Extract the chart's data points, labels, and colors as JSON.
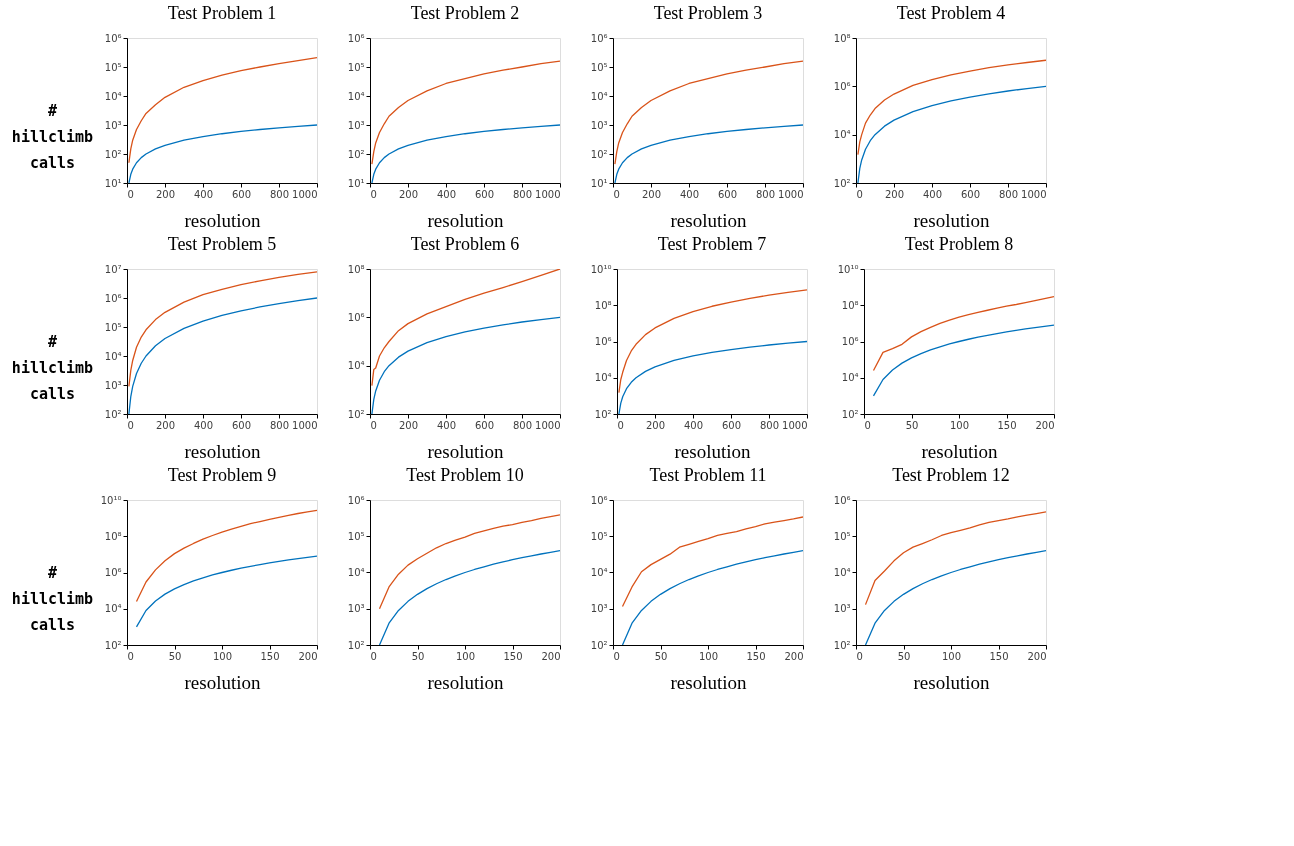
{
  "chart_data": [
    {
      "type": "line",
      "title": "Test Problem 1",
      "xlabel": "resolution",
      "ylabel": "# hillclimb calls",
      "log": true,
      "grid": false,
      "xlim": [
        0,
        1000
      ],
      "xticks": [
        0,
        200,
        400,
        600,
        800,
        1000
      ],
      "ylim": [
        10,
        1000000
      ],
      "yticks": [
        {
          "value": 10,
          "label": "10¹"
        },
        {
          "value": 100,
          "label": "10²"
        },
        {
          "value": 1000,
          "label": "10³"
        },
        {
          "value": 10000,
          "label": "10⁴"
        },
        {
          "value": 100000,
          "label": "10⁵"
        },
        {
          "value": 1000000,
          "label": "10⁶"
        }
      ],
      "x": [
        10,
        20,
        30,
        50,
        75,
        100,
        150,
        200,
        300,
        400,
        500,
        600,
        700,
        800,
        900,
        1000
      ],
      "series": [
        {
          "color": "#d95319",
          "values": [
            50,
            150,
            300,
            700,
            1400,
            2500,
            5000,
            9000,
            20000,
            34000,
            52000,
            75000,
            100000,
            130000,
            165000,
            210000
          ]
        },
        {
          "color": "#0072bd",
          "values": [
            10,
            20,
            30,
            50,
            75,
            100,
            150,
            200,
            300,
            400,
            500,
            600,
            700,
            800,
            900,
            1000
          ]
        }
      ]
    },
    {
      "type": "line",
      "title": "Test Problem 2",
      "xlabel": "resolution",
      "log": true,
      "grid": false,
      "xlim": [
        0,
        1000
      ],
      "xticks": [
        0,
        200,
        400,
        600,
        800,
        1000
      ],
      "ylim": [
        10,
        1000000
      ],
      "yticks": [
        {
          "value": 10,
          "label": "10¹"
        },
        {
          "value": 100,
          "label": "10²"
        },
        {
          "value": 1000,
          "label": "10³"
        },
        {
          "value": 10000,
          "label": "10⁴"
        },
        {
          "value": 100000,
          "label": "10⁵"
        },
        {
          "value": 1000000,
          "label": "10⁶"
        }
      ],
      "x": [
        10,
        20,
        30,
        50,
        75,
        100,
        150,
        200,
        300,
        400,
        500,
        600,
        700,
        800,
        900,
        1000
      ],
      "series": [
        {
          "color": "#d95319",
          "values": [
            45,
            120,
            240,
            550,
            1100,
            2000,
            4000,
            7000,
            15000,
            27000,
            40000,
            58000,
            78000,
            100000,
            130000,
            160000
          ]
        },
        {
          "color": "#0072bd",
          "values": [
            10,
            20,
            30,
            50,
            75,
            100,
            150,
            200,
            300,
            400,
            500,
            600,
            700,
            800,
            900,
            1000
          ]
        }
      ]
    },
    {
      "type": "line",
      "title": "Test Problem 3",
      "xlabel": "resolution",
      "log": true,
      "grid": false,
      "xlim": [
        0,
        1000
      ],
      "xticks": [
        0,
        200,
        400,
        600,
        800,
        1000
      ],
      "ylim": [
        10,
        1000000
      ],
      "yticks": [
        {
          "value": 10,
          "label": "10¹"
        },
        {
          "value": 100,
          "label": "10²"
        },
        {
          "value": 1000,
          "label": "10³"
        },
        {
          "value": 10000,
          "label": "10⁴"
        },
        {
          "value": 100000,
          "label": "10⁵"
        },
        {
          "value": 1000000,
          "label": "10⁶"
        }
      ],
      "x": [
        10,
        20,
        30,
        50,
        75,
        100,
        150,
        200,
        300,
        400,
        500,
        600,
        700,
        800,
        900,
        1000
      ],
      "series": [
        {
          "color": "#d95319",
          "values": [
            45,
            120,
            240,
            550,
            1100,
            2000,
            4000,
            7000,
            15000,
            27000,
            40000,
            58000,
            78000,
            100000,
            130000,
            160000
          ]
        },
        {
          "color": "#0072bd",
          "values": [
            10,
            20,
            30,
            50,
            75,
            100,
            150,
            200,
            300,
            400,
            500,
            600,
            700,
            800,
            900,
            1000
          ]
        }
      ]
    },
    {
      "type": "line",
      "title": "Test Problem 4",
      "xlabel": "resolution",
      "log": true,
      "grid": false,
      "xlim": [
        0,
        1000
      ],
      "xticks": [
        0,
        200,
        400,
        600,
        800,
        1000
      ],
      "ylim": [
        100,
        100000000
      ],
      "yticks": [
        {
          "value": 100,
          "label": "10²"
        },
        {
          "value": 10000,
          "label": "10⁴"
        },
        {
          "value": 1000000,
          "label": "10⁶"
        },
        {
          "value": 100000000,
          "label": "10⁸"
        }
      ],
      "x": [
        10,
        20,
        30,
        50,
        75,
        100,
        150,
        200,
        300,
        400,
        500,
        600,
        700,
        800,
        900,
        1000
      ],
      "series": [
        {
          "color": "#d95319",
          "values": [
            1500,
            5000,
            10000,
            30000,
            65000,
            120000,
            270000,
            480000,
            1100000,
            1900000,
            3000000,
            4300000,
            5900000,
            7700000,
            9700000,
            12000000
          ]
        },
        {
          "color": "#0072bd",
          "values": [
            100,
            400,
            900,
            2500,
            5625,
            10000,
            22500,
            40000,
            90000,
            160000,
            250000,
            360000,
            490000,
            640000,
            810000,
            1000000
          ]
        }
      ]
    },
    {
      "type": "line",
      "title": "Test Problem 5",
      "xlabel": "resolution",
      "ylabel": "# hillclimb calls",
      "log": true,
      "grid": false,
      "xlim": [
        0,
        1000
      ],
      "xticks": [
        0,
        200,
        400,
        600,
        800,
        1000
      ],
      "ylim": [
        100,
        10000000
      ],
      "yticks": [
        {
          "value": 100,
          "label": "10²"
        },
        {
          "value": 1000,
          "label": "10³"
        },
        {
          "value": 10000,
          "label": "10⁴"
        },
        {
          "value": 100000,
          "label": "10⁵"
        },
        {
          "value": 1000000,
          "label": "10⁶"
        },
        {
          "value": 10000000,
          "label": "10⁷"
        }
      ],
      "x": [
        10,
        20,
        30,
        50,
        75,
        100,
        150,
        200,
        300,
        400,
        500,
        600,
        700,
        800,
        900,
        1000
      ],
      "series": [
        {
          "color": "#d95319",
          "values": [
            900,
            3200,
            7000,
            20000,
            45000,
            80000,
            180000,
            320000,
            720000,
            1300000,
            2000000,
            2900000,
            3900000,
            5100000,
            6500000,
            8000000
          ]
        },
        {
          "color": "#0072bd",
          "values": [
            100,
            400,
            900,
            2500,
            5625,
            10000,
            22500,
            40000,
            90000,
            160000,
            250000,
            360000,
            490000,
            640000,
            810000,
            1000000
          ]
        }
      ]
    },
    {
      "type": "line",
      "title": "Test Problem 6",
      "xlabel": "resolution",
      "log": true,
      "grid": false,
      "xlim": [
        0,
        1000
      ],
      "xticks": [
        0,
        200,
        400,
        600,
        800,
        1000
      ],
      "ylim": [
        100,
        100000000
      ],
      "yticks": [
        {
          "value": 100,
          "label": "10²"
        },
        {
          "value": 10000,
          "label": "10⁴"
        },
        {
          "value": 1000000,
          "label": "10⁶"
        },
        {
          "value": 100000000,
          "label": "10⁸"
        }
      ],
      "x": [
        10,
        20,
        30,
        50,
        75,
        100,
        150,
        200,
        300,
        400,
        500,
        600,
        700,
        800,
        900,
        1000
      ],
      "series": [
        {
          "color": "#d95319",
          "values": [
            1500,
            7000,
            8000,
            25000,
            55000,
            100000,
            280000,
            550000,
            1400000,
            2800000,
            5500000,
            10000000,
            17000000,
            30000000,
            55000000,
            100000000
          ]
        },
        {
          "color": "#0072bd",
          "values": [
            100,
            400,
            900,
            2500,
            5625,
            10000,
            22500,
            40000,
            90000,
            160000,
            250000,
            360000,
            490000,
            640000,
            810000,
            1000000
          ]
        }
      ]
    },
    {
      "type": "line",
      "title": "Test Problem 7",
      "xlabel": "resolution",
      "log": true,
      "grid": false,
      "xlim": [
        0,
        1000
      ],
      "xticks": [
        0,
        200,
        400,
        600,
        800,
        1000
      ],
      "ylim": [
        100,
        10000000000
      ],
      "yticks": [
        {
          "value": 100,
          "label": "10²"
        },
        {
          "value": 10000,
          "label": "10⁴"
        },
        {
          "value": 1000000,
          "label": "10⁶"
        },
        {
          "value": 100000000,
          "label": "10⁸"
        },
        {
          "value": 10000000000,
          "label": "10¹⁰"
        }
      ],
      "x": [
        10,
        20,
        30,
        50,
        75,
        100,
        150,
        200,
        300,
        400,
        500,
        600,
        700,
        800,
        900,
        1000
      ],
      "series": [
        {
          "color": "#d95319",
          "values": [
            1500,
            8000,
            20000,
            90000,
            300000,
            700000,
            2400000,
            5600000,
            19000000,
            45000000,
            88000000,
            150000000,
            240000000,
            360000000,
            510000000,
            700000000
          ]
        },
        {
          "color": "#0072bd",
          "values": [
            100,
            400,
            900,
            2500,
            5625,
            10000,
            22500,
            40000,
            90000,
            160000,
            250000,
            360000,
            490000,
            640000,
            810000,
            1000000
          ]
        }
      ]
    },
    {
      "type": "line",
      "title": "Test Problem 8",
      "xlabel": "resolution",
      "log": true,
      "grid": false,
      "xlim": [
        0,
        200
      ],
      "xticks": [
        0,
        50,
        100,
        150,
        200
      ],
      "ylim": [
        100,
        10000000000
      ],
      "yticks": [
        {
          "value": 100,
          "label": "10²"
        },
        {
          "value": 10000,
          "label": "10⁴"
        },
        {
          "value": 1000000,
          "label": "10⁶"
        },
        {
          "value": 100000000,
          "label": "10⁸"
        },
        {
          "value": 10000000000,
          "label": "10¹⁰"
        }
      ],
      "x": [
        10,
        20,
        30,
        40,
        50,
        60,
        70,
        80,
        90,
        100,
        110,
        120,
        130,
        140,
        150,
        160,
        170,
        180,
        190,
        200
      ],
      "series": [
        {
          "color": "#d95319",
          "values": [
            25000,
            250000,
            400000,
            700000,
            1800000,
            3500000,
            6000000,
            10000000,
            15000000,
            22000000,
            30000000,
            40000000,
            53000000,
            70000000,
            90000000,
            110000000,
            140000000,
            180000000,
            230000000,
            300000000
          ]
        },
        {
          "color": "#0072bd",
          "values": [
            1000,
            8000,
            27000,
            64000,
            125000,
            216000,
            343000,
            512000,
            729000,
            1000000,
            1331000,
            1728000,
            2197000,
            2744000,
            3375000,
            4096000,
            4913000,
            5832000,
            6859000,
            8000000
          ]
        }
      ]
    },
    {
      "type": "line",
      "title": "Test Problem 9",
      "xlabel": "resolution",
      "ylabel": "# hillclimb calls",
      "log": true,
      "grid": false,
      "xlim": [
        0,
        200
      ],
      "xticks": [
        0,
        50,
        100,
        150,
        200
      ],
      "ylim": [
        100,
        10000000000
      ],
      "yticks": [
        {
          "value": 100,
          "label": "10²"
        },
        {
          "value": 10000,
          "label": "10⁴"
        },
        {
          "value": 1000000,
          "label": "10⁶"
        },
        {
          "value": 100000000,
          "label": "10⁸"
        },
        {
          "value": 10000000000,
          "label": "10¹⁰"
        }
      ],
      "x": [
        10,
        20,
        30,
        40,
        50,
        60,
        70,
        80,
        90,
        100,
        110,
        120,
        130,
        140,
        150,
        160,
        170,
        180,
        190,
        200
      ],
      "series": [
        {
          "color": "#d95319",
          "values": [
            25000,
            300000,
            1400000,
            4400000,
            11000000,
            22000000,
            40000000,
            70000000,
            110000000,
            170000000,
            250000000,
            350000000,
            490000000,
            650000000,
            860000000,
            1100000000,
            1400000000,
            1800000000,
            2200000000,
            2700000000
          ]
        },
        {
          "color": "#0072bd",
          "values": [
            1000,
            8000,
            27000,
            64000,
            125000,
            216000,
            343000,
            512000,
            729000,
            1000000,
            1331000,
            1728000,
            2197000,
            2744000,
            3375000,
            4096000,
            4913000,
            5832000,
            6859000,
            8000000
          ]
        }
      ]
    },
    {
      "type": "line",
      "title": "Test Problem 10",
      "xlabel": "resolution",
      "log": true,
      "grid": false,
      "xlim": [
        0,
        200
      ],
      "xticks": [
        0,
        50,
        100,
        150,
        200
      ],
      "ylim": [
        100,
        1000000
      ],
      "yticks": [
        {
          "value": 100,
          "label": "10²"
        },
        {
          "value": 1000,
          "label": "10³"
        },
        {
          "value": 10000,
          "label": "10⁴"
        },
        {
          "value": 100000,
          "label": "10⁵"
        },
        {
          "value": 1000000,
          "label": "10⁶"
        }
      ],
      "x": [
        10,
        20,
        30,
        40,
        50,
        60,
        70,
        80,
        90,
        100,
        110,
        120,
        130,
        140,
        150,
        160,
        170,
        180,
        190,
        200
      ],
      "series": [
        {
          "color": "#d95319",
          "values": [
            1000,
            4000,
            9000,
            16000,
            24000,
            34000,
            48000,
            63000,
            78000,
            95000,
            120000,
            140000,
            165000,
            190000,
            210000,
            240000,
            270000,
            310000,
            350000,
            390000
          ]
        },
        {
          "color": "#0072bd",
          "values": [
            100,
            400,
            900,
            1600,
            2500,
            3600,
            4900,
            6400,
            8100,
            10000,
            12100,
            14400,
            16900,
            19600,
            22500,
            25600,
            28900,
            32400,
            36100,
            40000
          ]
        }
      ]
    },
    {
      "type": "line",
      "title": "Test Problem 11",
      "xlabel": "resolution",
      "log": true,
      "grid": false,
      "xlim": [
        0,
        200
      ],
      "xticks": [
        0,
        50,
        100,
        150,
        200
      ],
      "ylim": [
        100,
        1000000
      ],
      "yticks": [
        {
          "value": 100,
          "label": "10²"
        },
        {
          "value": 1000,
          "label": "10³"
        },
        {
          "value": 10000,
          "label": "10⁴"
        },
        {
          "value": 100000,
          "label": "10⁵"
        },
        {
          "value": 1000000,
          "label": "10⁶"
        }
      ],
      "x": [
        10,
        20,
        30,
        40,
        50,
        60,
        70,
        80,
        90,
        100,
        110,
        120,
        130,
        140,
        150,
        160,
        170,
        180,
        190,
        200
      ],
      "series": [
        {
          "color": "#d95319",
          "values": [
            1150,
            4000,
            10500,
            16500,
            23000,
            32000,
            50000,
            60000,
            72000,
            86000,
            105000,
            120000,
            135000,
            160000,
            185000,
            220000,
            245000,
            270000,
            300000,
            340000
          ]
        },
        {
          "color": "#0072bd",
          "values": [
            100,
            400,
            900,
            1600,
            2500,
            3600,
            4900,
            6400,
            8100,
            10000,
            12100,
            14400,
            16900,
            19600,
            22500,
            25600,
            28900,
            32400,
            36100,
            40000
          ]
        }
      ]
    },
    {
      "type": "line",
      "title": "Test Problem 12",
      "xlabel": "resolution",
      "log": true,
      "grid": false,
      "xlim": [
        0,
        200
      ],
      "xticks": [
        0,
        50,
        100,
        150,
        200
      ],
      "ylim": [
        100,
        1000000
      ],
      "yticks": [
        {
          "value": 100,
          "label": "10²"
        },
        {
          "value": 1000,
          "label": "10³"
        },
        {
          "value": 10000,
          "label": "10⁴"
        },
        {
          "value": 100000,
          "label": "10⁵"
        },
        {
          "value": 1000000,
          "label": "10⁶"
        }
      ],
      "x": [
        10,
        20,
        30,
        40,
        50,
        60,
        70,
        80,
        90,
        100,
        110,
        120,
        130,
        140,
        150,
        160,
        170,
        180,
        190,
        200
      ],
      "series": [
        {
          "color": "#d95319",
          "values": [
            1300,
            6000,
            11000,
            21000,
            35000,
            50000,
            63000,
            80000,
            105000,
            125000,
            145000,
            170000,
            205000,
            240000,
            270000,
            300000,
            340000,
            380000,
            420000,
            470000
          ]
        },
        {
          "color": "#0072bd",
          "values": [
            100,
            400,
            900,
            1600,
            2500,
            3600,
            4900,
            6400,
            8100,
            10000,
            12100,
            14400,
            16900,
            19600,
            22500,
            25600,
            28900,
            32400,
            36100,
            40000
          ]
        }
      ]
    }
  ]
}
